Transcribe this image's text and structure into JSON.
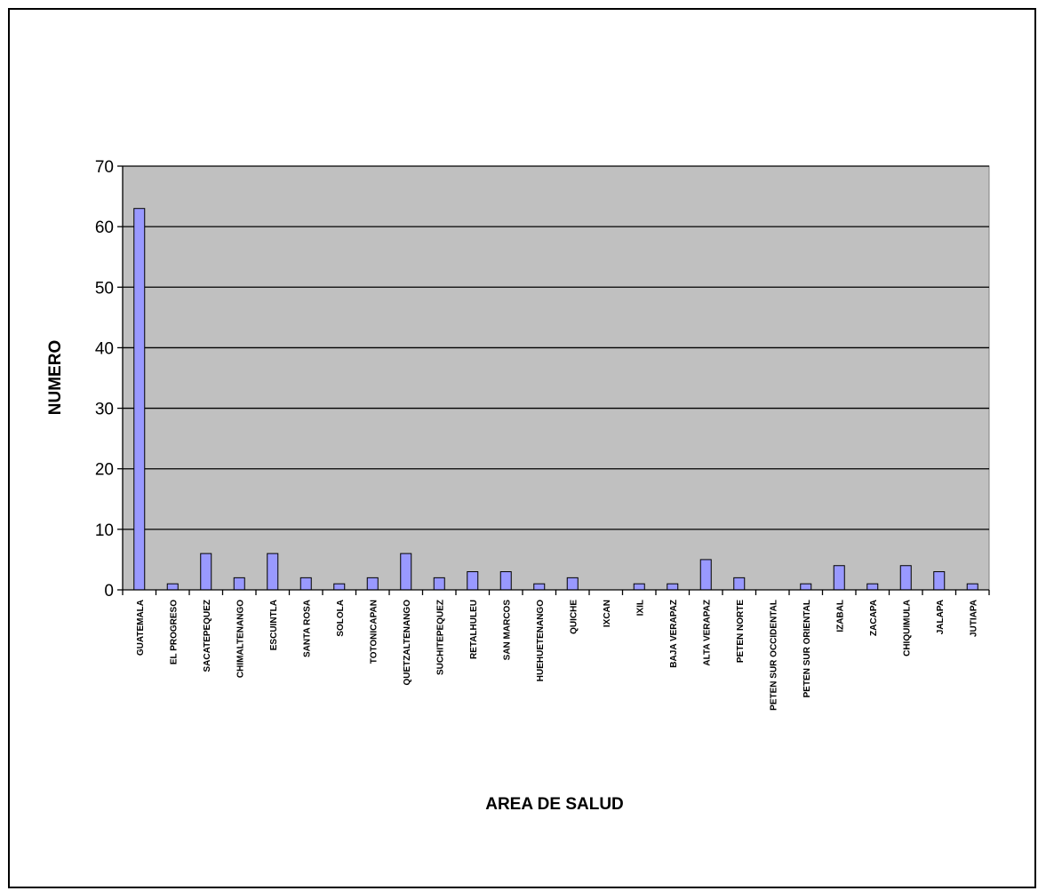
{
  "chart_data": {
    "type": "bar",
    "title": "",
    "xlabel": "AREA DE SALUD",
    "ylabel": "NUMERO",
    "ylim": [
      0,
      70
    ],
    "yticks": [
      0,
      10,
      20,
      30,
      40,
      50,
      60,
      70
    ],
    "grid": true,
    "legend": "none",
    "colors": {
      "plot_background": "#c0c0c0",
      "bar_fill": "#9999ff",
      "bar_stroke": "#000000",
      "gridline": "#000000"
    },
    "categories": [
      "GUATEMALA",
      "EL PROGRESO",
      "SACATEPEQUEZ",
      "CHIMALTENANGO",
      "ESCUINTLA",
      "SANTA ROSA",
      "SOLOLA",
      "TOTONICAPAN",
      "QUETZALTENANGO",
      "SUCHITEPEQUEZ",
      "RETALHULEU",
      "SAN MARCOS",
      "HUEHUETENANGO",
      "QUICHE",
      "IXCAN",
      "IXIL",
      "BAJA VERAPAZ",
      "ALTA VERAPAZ",
      "PETEN NORTE",
      "PETEN SUR OCCIDENTAL",
      "PETEN SUR ORIENTAL",
      "IZABAL",
      "ZACAPA",
      "CHIQUIMULA",
      "JALAPA",
      "JUTIAPA"
    ],
    "values": [
      63,
      1,
      6,
      2,
      6,
      2,
      1,
      2,
      6,
      2,
      3,
      3,
      1,
      2,
      0,
      1,
      1,
      5,
      2,
      0,
      1,
      4,
      1,
      4,
      3,
      1
    ]
  }
}
